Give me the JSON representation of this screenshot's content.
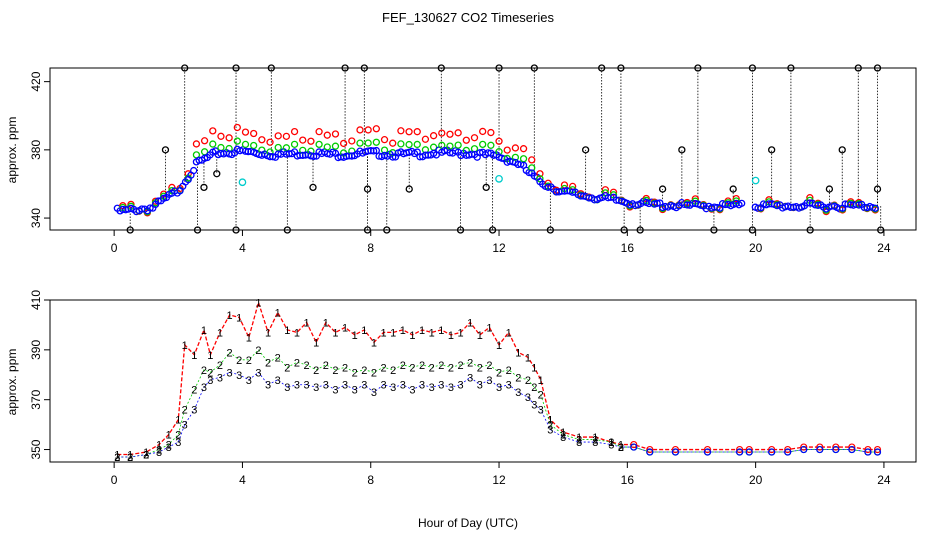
{
  "figure": {
    "title": "FEF_130627  CO2 Timeseries",
    "xlabel": "Hour of Day (UTC)"
  },
  "colors": {
    "series1": "#ff0000",
    "series2": "#00cc00",
    "series3": "#0000ff",
    "reference": "#00cccc",
    "spikes": "#000000"
  },
  "chart_data": [
    {
      "type": "scatter",
      "xlim": [
        -2,
        25
      ],
      "ylim": [
        333,
        428
      ],
      "xticks": [
        0,
        4,
        8,
        12,
        16,
        20,
        24
      ],
      "yticks": [
        340,
        380,
        420
      ],
      "ylabel": "approx. ppm",
      "grid": false,
      "legend": "none",
      "baseline_points": [
        [
          0.3,
          344
        ],
        [
          1.2,
          346
        ],
        [
          2.0,
          356
        ],
        [
          2.6,
          372
        ],
        [
          3.2,
          378
        ],
        [
          4.0,
          379
        ],
        [
          5.0,
          377
        ],
        [
          6.0,
          378
        ],
        [
          7.0,
          377
        ],
        [
          8.0,
          378
        ],
        [
          9.0,
          377
        ],
        [
          10.0,
          378
        ],
        [
          11.0,
          378
        ],
        [
          12.0,
          376
        ],
        [
          12.6,
          372
        ],
        [
          13.2,
          362
        ],
        [
          14.0,
          355
        ],
        [
          15.0,
          352
        ],
        [
          15.8,
          350
        ],
        [
          16.5,
          348
        ],
        [
          18.0,
          347
        ],
        [
          19.6,
          347
        ],
        [
          20.0,
          347
        ],
        [
          22.0,
          347
        ],
        [
          23.7,
          347
        ]
      ],
      "spike_points": [
        [
          2.2,
          430
        ],
        [
          2.6,
          333
        ],
        [
          3.8,
          430
        ],
        [
          3.8,
          333
        ],
        [
          4.9,
          430
        ],
        [
          5.4,
          333
        ],
        [
          7.2,
          430
        ],
        [
          7.8,
          430
        ],
        [
          7.9,
          333
        ],
        [
          8.5,
          333
        ],
        [
          10.2,
          430
        ],
        [
          10.8,
          333
        ],
        [
          12.0,
          430
        ],
        [
          11.8,
          333
        ],
        [
          13.1,
          430
        ],
        [
          13.6,
          333
        ],
        [
          15.2,
          430
        ],
        [
          15.8,
          430
        ],
        [
          15.9,
          333
        ],
        [
          16.4,
          333
        ],
        [
          18.2,
          430
        ],
        [
          18.7,
          333
        ],
        [
          19.9,
          430
        ],
        [
          19.9,
          333
        ],
        [
          21.1,
          430
        ],
        [
          21.7,
          333
        ],
        [
          23.2,
          430
        ],
        [
          23.8,
          430
        ],
        [
          23.9,
          333
        ],
        [
          1.6,
          380
        ],
        [
          2.8,
          358
        ],
        [
          3.2,
          366
        ],
        [
          6.2,
          358
        ],
        [
          7.9,
          357
        ],
        [
          9.2,
          357
        ],
        [
          11.6,
          358
        ],
        [
          14.7,
          380
        ],
        [
          17.1,
          357
        ],
        [
          17.7,
          380
        ],
        [
          19.3,
          357
        ],
        [
          20.5,
          380
        ],
        [
          22.3,
          357
        ],
        [
          22.7,
          380
        ],
        [
          23.8,
          357
        ],
        [
          0.5,
          333
        ]
      ],
      "reference_points": [
        [
          4.0,
          361
        ],
        [
          12.0,
          363
        ],
        [
          20.0,
          362
        ]
      ]
    },
    {
      "type": "line",
      "xlim": [
        -2,
        25
      ],
      "ylim": [
        345,
        410
      ],
      "xticks": [
        0,
        4,
        8,
        12,
        16,
        20,
        24
      ],
      "yticks": [
        350,
        370,
        390,
        410
      ],
      "ylabel": "approx. ppm",
      "grid": false,
      "legend": "none",
      "x": [
        0.1,
        0.5,
        1.0,
        1.4,
        1.7,
        2.0,
        2.2,
        2.5,
        2.8,
        3.0,
        3.3,
        3.6,
        3.9,
        4.2,
        4.5,
        4.8,
        5.1,
        5.4,
        5.7,
        6.0,
        6.3,
        6.6,
        6.9,
        7.2,
        7.5,
        7.8,
        8.1,
        8.4,
        8.7,
        9.0,
        9.3,
        9.6,
        9.9,
        10.2,
        10.5,
        10.8,
        11.1,
        11.4,
        11.7,
        12.0,
        12.3,
        12.6,
        12.9,
        13.1,
        13.3,
        13.6,
        14.0,
        14.5,
        15.0,
        15.5,
        15.8,
        16.2,
        16.7,
        17.5,
        18.5,
        19.5,
        19.8,
        20.5,
        21.0,
        21.5,
        22.0,
        22.5,
        23.0,
        23.5,
        23.8
      ],
      "series": [
        {
          "name": "1",
          "values": [
            348,
            348,
            349,
            352,
            356,
            362,
            392,
            388,
            398,
            388,
            397,
            404,
            403,
            395,
            409,
            397,
            405,
            398,
            397,
            401,
            393,
            401,
            397,
            399,
            396,
            398,
            393,
            397,
            397,
            398,
            396,
            398,
            397,
            398,
            396,
            397,
            401,
            396,
            399,
            392,
            397,
            389,
            387,
            383,
            378,
            362,
            357,
            355,
            355,
            353,
            352,
            352,
            350,
            350,
            350,
            350,
            350,
            350,
            350,
            351,
            351,
            351,
            351,
            350,
            350
          ]
        },
        {
          "name": "2",
          "values": [
            347,
            347,
            348,
            350,
            352,
            356,
            366,
            374,
            382,
            381,
            384,
            389,
            386,
            386,
            390,
            385,
            387,
            383,
            385,
            384,
            382,
            384,
            382,
            383,
            381,
            382,
            381,
            383,
            382,
            384,
            383,
            384,
            383,
            384,
            383,
            384,
            385,
            383,
            384,
            381,
            382,
            379,
            378,
            375,
            372,
            360,
            356,
            354,
            354,
            353,
            351,
            351,
            349,
            349,
            349,
            349,
            349,
            349,
            349,
            350,
            350,
            350,
            350,
            349,
            349
          ]
        },
        {
          "name": "3",
          "values": [
            347,
            347,
            348,
            349,
            351,
            353,
            360,
            366,
            375,
            378,
            379,
            381,
            380,
            378,
            381,
            376,
            378,
            375,
            376,
            376,
            375,
            376,
            374,
            376,
            374,
            376,
            373,
            376,
            375,
            376,
            374,
            376,
            375,
            376,
            375,
            376,
            379,
            376,
            378,
            375,
            376,
            373,
            371,
            368,
            366,
            358,
            355,
            353,
            353,
            352,
            351,
            351,
            349,
            349,
            349,
            349,
            349,
            349,
            349,
            350,
            350,
            350,
            350,
            349,
            349
          ]
        }
      ]
    }
  ]
}
